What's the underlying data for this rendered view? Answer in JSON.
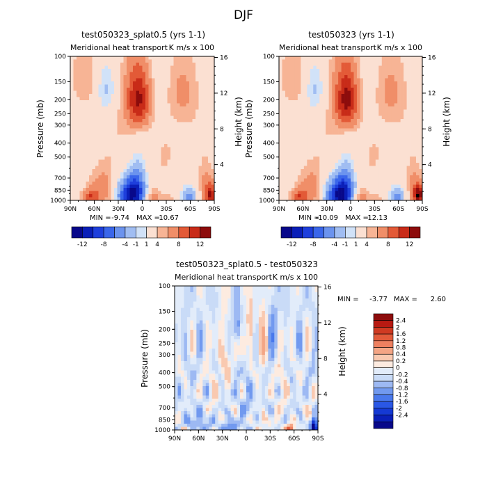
{
  "figure_title": "DJF",
  "colors": {
    "div12": [
      "#08088a",
      "#0a1fb8",
      "#1e3fdc",
      "#3a66ea",
      "#6b93ee",
      "#a0bdf2",
      "#d1e2f8",
      "#fbe0d2",
      "#f7b495",
      "#f08e68",
      "#e35a37",
      "#c82b18",
      "#8d0c0c"
    ],
    "div16": [
      "#08088a",
      "#0a1fb8",
      "#1539d4",
      "#2a57e6",
      "#4978ec",
      "#7199ef",
      "#9db9f3",
      "#c9dbf7",
      "#e2ecfa",
      "#fdebe0",
      "#f9c9b0",
      "#f4a585",
      "#ee8060",
      "#e25a3a",
      "#cf3a22",
      "#b81a12",
      "#8d0c0c"
    ]
  },
  "chart_data": [
    {
      "id": "panel1",
      "type": "heatmap",
      "title": "test050323_splat0.5 (yrs 1-1)",
      "subtitle_left": "Meridional heat transport",
      "subtitle_right": "K m/s x 100",
      "ylabel": "Pressure (mb)",
      "ylabel_right": "Height (km)",
      "x_ticks": [
        "90N",
        "60N",
        "30N",
        "0",
        "30S",
        "60S",
        "90S"
      ],
      "y_ticks": [
        "100",
        "150",
        "200",
        "250",
        "300",
        "400",
        "500",
        "700",
        "850",
        "1000"
      ],
      "y_ticks_right": [
        "16",
        "12",
        "8",
        "4"
      ],
      "min_label": "MIN = ",
      "min_value": "-9.74",
      "max_label": "MAX = ",
      "max_value": "10.67",
      "colorbar_labels": [
        "-12",
        "-8",
        "-4",
        "-1",
        "1",
        "4",
        "8",
        "12"
      ],
      "features": [
        {
          "lat": 5,
          "p": 200,
          "v": 8.5,
          "sx": 10,
          "sp": 70
        },
        {
          "lat": 45,
          "p": 170,
          "v": -2.5,
          "sx": 9,
          "sp": 50
        },
        {
          "lat": 70,
          "p": 140,
          "v": 2.0,
          "sx": 12,
          "sp": 60
        },
        {
          "lat": -45,
          "p": 170,
          "v": 1.5,
          "sx": 10,
          "sp": 60
        },
        {
          "lat": -60,
          "p": 200,
          "v": 1.2,
          "sx": 10,
          "sp": 80
        },
        {
          "lat": 30,
          "p": 450,
          "v": 1.0,
          "sx": 18,
          "sp": 250
        },
        {
          "lat": -30,
          "p": 450,
          "v": 1.0,
          "sx": 15,
          "sp": 200
        },
        {
          "lat": 5,
          "p": 700,
          "v": -1.6,
          "sx": 8,
          "sp": 250
        },
        {
          "lat": 15,
          "p": 930,
          "v": -10.0,
          "sx": 11,
          "sp": 160
        },
        {
          "lat": 8,
          "p": 820,
          "v": -4.0,
          "sx": 8,
          "sp": 160
        },
        {
          "lat": 50,
          "p": 850,
          "v": 3.0,
          "sx": 10,
          "sp": 160
        },
        {
          "lat": 65,
          "p": 950,
          "v": 5.0,
          "sx": 7,
          "sp": 80
        },
        {
          "lat": -12,
          "p": 950,
          "v": 3.0,
          "sx": 7,
          "sp": 80
        },
        {
          "lat": -58,
          "p": 950,
          "v": -5.0,
          "sx": 6,
          "sp": 90
        },
        {
          "lat": -85,
          "p": 920,
          "v": 8.0,
          "sx": 5,
          "sp": 110
        },
        {
          "lat": -78,
          "p": 700,
          "v": 2.0,
          "sx": 7,
          "sp": 180
        },
        {
          "lat": -35,
          "p": 980,
          "v": 1.2,
          "sx": 8,
          "sp": 60
        }
      ]
    },
    {
      "id": "panel2",
      "type": "heatmap",
      "title": "test050323 (yrs 1-1)",
      "subtitle_left": "Meridional heat transport",
      "subtitle_right": "K m/s x 100",
      "ylabel": "Pressure (mb)",
      "ylabel_right": "Height (km)",
      "x_ticks": [
        "90N",
        "60N",
        "30N",
        "0",
        "30S",
        "60S",
        "90S"
      ],
      "y_ticks": [
        "100",
        "150",
        "200",
        "250",
        "300",
        "400",
        "500",
        "700",
        "850",
        "1000"
      ],
      "y_ticks_right": [
        "16",
        "12",
        "8",
        "4"
      ],
      "min_label": "MIN = ",
      "min_value": "-10.09",
      "max_label": "MAX = ",
      "max_value": "12.13",
      "colorbar_labels": [
        "-12",
        "-8",
        "-4",
        "-1",
        "1",
        "4",
        "8",
        "12"
      ],
      "features": [
        {
          "lat": 5,
          "p": 200,
          "v": 8.8,
          "sx": 10,
          "sp": 70
        },
        {
          "lat": 45,
          "p": 170,
          "v": -2.5,
          "sx": 9,
          "sp": 50
        },
        {
          "lat": 70,
          "p": 140,
          "v": 2.0,
          "sx": 12,
          "sp": 60
        },
        {
          "lat": -45,
          "p": 170,
          "v": 1.5,
          "sx": 10,
          "sp": 60
        },
        {
          "lat": -60,
          "p": 200,
          "v": 1.2,
          "sx": 10,
          "sp": 80
        },
        {
          "lat": 30,
          "p": 450,
          "v": 1.0,
          "sx": 18,
          "sp": 250
        },
        {
          "lat": -30,
          "p": 450,
          "v": 1.0,
          "sx": 15,
          "sp": 200
        },
        {
          "lat": 5,
          "p": 700,
          "v": -1.6,
          "sx": 8,
          "sp": 250
        },
        {
          "lat": 15,
          "p": 930,
          "v": -10.5,
          "sx": 11,
          "sp": 160
        },
        {
          "lat": 8,
          "p": 820,
          "v": -4.0,
          "sx": 8,
          "sp": 160
        },
        {
          "lat": 50,
          "p": 850,
          "v": 3.0,
          "sx": 10,
          "sp": 160
        },
        {
          "lat": 65,
          "p": 950,
          "v": 5.0,
          "sx": 7,
          "sp": 80
        },
        {
          "lat": -12,
          "p": 950,
          "v": 3.0,
          "sx": 7,
          "sp": 80
        },
        {
          "lat": -58,
          "p": 950,
          "v": -5.0,
          "sx": 6,
          "sp": 90
        },
        {
          "lat": -85,
          "p": 920,
          "v": 9.5,
          "sx": 5,
          "sp": 110
        },
        {
          "lat": -78,
          "p": 700,
          "v": 2.0,
          "sx": 7,
          "sp": 180
        },
        {
          "lat": -35,
          "p": 980,
          "v": 1.2,
          "sx": 8,
          "sp": 60
        }
      ]
    },
    {
      "id": "panel3",
      "type": "heatmap",
      "title": "test050323_splat0.5 - test050323",
      "subtitle_left": "Meridional heat transport",
      "subtitle_right": "K m/s x 100",
      "ylabel": "Pressure (mb)",
      "ylabel_right": "Height (km)",
      "x_ticks": [
        "90N",
        "60N",
        "30N",
        "0",
        "30S",
        "60S",
        "90S"
      ],
      "y_ticks": [
        "100",
        "150",
        "200",
        "250",
        "300",
        "400",
        "500",
        "700",
        "850",
        "1000"
      ],
      "y_ticks_right": [
        "16",
        "12",
        "8",
        "4"
      ],
      "min_label": "MIN = ",
      "min_value": "-3.77",
      "max_label": "MAX = ",
      "max_value": "2.60",
      "colorbar_labels": [
        "2.4",
        "2",
        "1.6",
        "1.2",
        "0.8",
        "0.4",
        "0.2",
        "0",
        "-0.2",
        "-0.4",
        "-0.8",
        "-1.2",
        "-1.6",
        "-2",
        "-2.4"
      ],
      "features": [
        {
          "lat": 12,
          "p": 200,
          "v": -0.9,
          "sx": 3,
          "sp": 40
        },
        {
          "lat": 4,
          "p": 260,
          "v": 0.7,
          "sx": 3,
          "sp": 60
        },
        {
          "lat": -5,
          "p": 180,
          "v": 0.6,
          "sx": 3,
          "sp": 50
        },
        {
          "lat": 25,
          "p": 300,
          "v": 0.5,
          "sx": 4,
          "sp": 120
        },
        {
          "lat": -20,
          "p": 250,
          "v": 0.5,
          "sx": 4,
          "sp": 150
        },
        {
          "lat": -35,
          "p": 200,
          "v": -0.4,
          "sx": 4,
          "sp": 100
        },
        {
          "lat": 40,
          "p": 500,
          "v": 0.3,
          "sx": 6,
          "sp": 200
        },
        {
          "lat": -45,
          "p": 500,
          "v": 0.3,
          "sx": 6,
          "sp": 200
        },
        {
          "lat": 0,
          "p": 650,
          "v": -0.3,
          "sx": 5,
          "sp": 200
        },
        {
          "lat": 60,
          "p": 880,
          "v": -0.4,
          "sx": 12,
          "sp": 100
        },
        {
          "lat": 80,
          "p": 990,
          "v": 0.8,
          "sx": 3,
          "sp": 20
        },
        {
          "lat": 20,
          "p": 960,
          "v": -0.6,
          "sx": 8,
          "sp": 60
        },
        {
          "lat": -55,
          "p": 975,
          "v": 1.8,
          "sx": 4,
          "sp": 40
        },
        {
          "lat": -85,
          "p": 960,
          "v": -3.0,
          "sx": 3,
          "sp": 80
        },
        {
          "lat": -80,
          "p": 800,
          "v": 0.4,
          "sx": 5,
          "sp": 100
        },
        {
          "lat": -20,
          "p": 880,
          "v": 0.3,
          "sx": 8,
          "sp": 80
        }
      ]
    }
  ]
}
